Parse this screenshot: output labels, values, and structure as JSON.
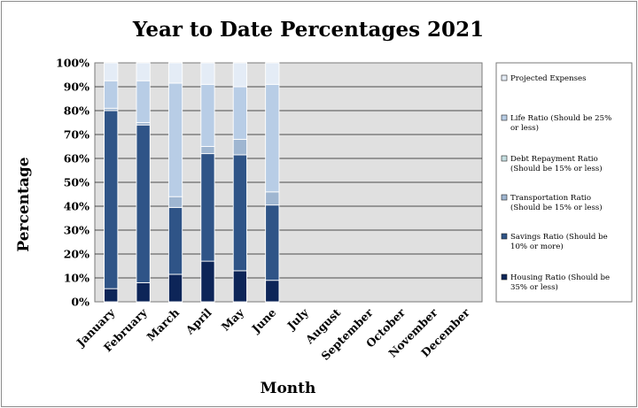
{
  "chart_data": {
    "type": "bar",
    "stacked": true,
    "percent_stacked": true,
    "title": "Year to Date Percentages 2021",
    "xlabel": "Month",
    "ylabel": "Percentage",
    "ylim": [
      0,
      100
    ],
    "yticks": [
      "0%",
      "10%",
      "20%",
      "30%",
      "40%",
      "50%",
      "60%",
      "70%",
      "80%",
      "90%",
      "100%"
    ],
    "grid": true,
    "legend_position": "right",
    "categories": [
      "January",
      "February",
      "March",
      "April",
      "May",
      "June",
      "July",
      "August",
      "September",
      "October",
      "November",
      "December"
    ],
    "series": [
      {
        "name": "Housing Ratio (Should be 35% or less)",
        "color": "#0d2558",
        "values": [
          5.5,
          8,
          11.5,
          17,
          13,
          9,
          0,
          0,
          0,
          0,
          0,
          0
        ]
      },
      {
        "name": "Savings Ratio (Should be 10% or more)",
        "color": "#2f5487",
        "values": [
          74.5,
          66,
          28,
          45,
          48.5,
          31.5,
          0,
          0,
          0,
          0,
          0,
          0
        ]
      },
      {
        "name": "Transportation Ratio (Should be 15% or less)",
        "color": "#9fb6d1",
        "values": [
          1,
          1,
          4.5,
          3,
          6.5,
          5.5,
          0,
          0,
          0,
          0,
          0,
          0
        ]
      },
      {
        "name": "Debt Repayment Ratio (Should be 15% or less)",
        "color": "#c5dfe1",
        "values": [
          0,
          0,
          0,
          0,
          0,
          0,
          0,
          0,
          0,
          0,
          0,
          0
        ]
      },
      {
        "name": "Life Ratio (Should be 25% or less)",
        "color": "#b8cde6",
        "values": [
          11.5,
          17.5,
          47.5,
          26,
          22,
          45,
          0,
          0,
          0,
          0,
          0,
          0
        ]
      },
      {
        "name": "Projected Expenses",
        "color": "#e4ecf6",
        "values": [
          7.5,
          7.5,
          8.5,
          9,
          10,
          9,
          0,
          0,
          0,
          0,
          0,
          0
        ]
      }
    ]
  }
}
